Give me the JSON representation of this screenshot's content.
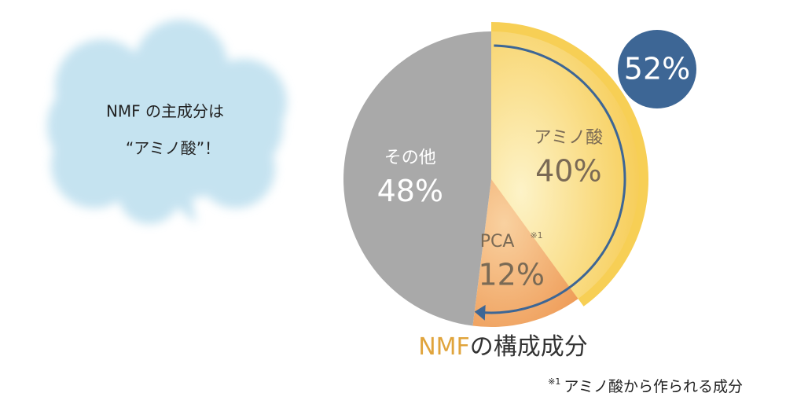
{
  "chart_data": {
    "type": "pie",
    "categories": [
      "アミノ酸",
      "PCA",
      "その他"
    ],
    "values": [
      40,
      12,
      48
    ],
    "value_labels": [
      "40%",
      "12%",
      "48%"
    ],
    "colors": [
      "#f7cf55",
      "#f0a565",
      "#a9a9a9"
    ],
    "bracket_label": "52%",
    "bracket_color": "#3d6695",
    "footnote_marker": "※1",
    "footnote": "アミノ酸から作られる成分",
    "title_parts": [
      "NMF",
      "の構成成分"
    ],
    "callout": [
      "NMF の主成分は",
      "“アミノ酸”！"
    ]
  }
}
